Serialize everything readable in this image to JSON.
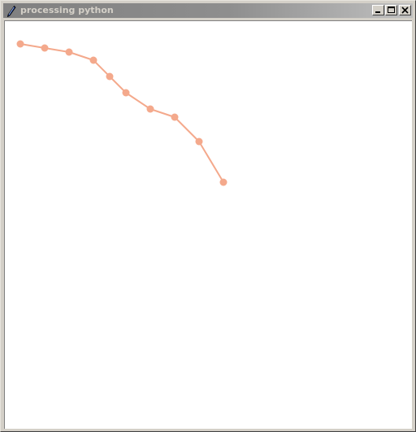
{
  "window": {
    "title": "processing python",
    "icon": "feather-pen-icon",
    "controls": {
      "minimize": "minimize-icon",
      "maximize": "maximize-icon",
      "close": "close-icon"
    }
  },
  "sketch": {
    "stroke_color": "#f4a98c",
    "point_color": "#f4a98c",
    "background": "#ffffff"
  }
}
